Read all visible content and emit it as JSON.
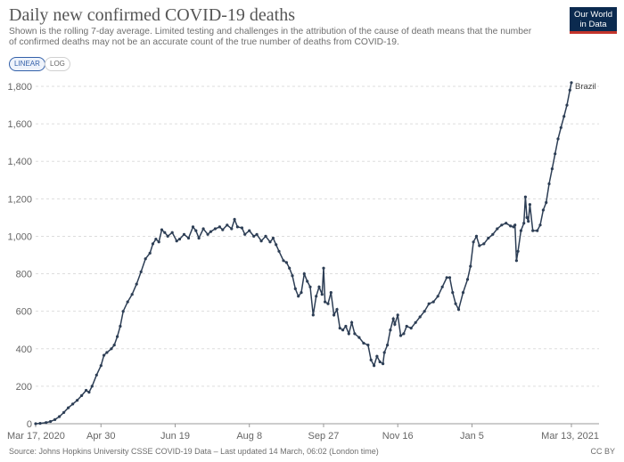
{
  "header": {
    "title": "Daily new confirmed COVID-19 deaths",
    "subtitle": "Shown is the rolling 7-day average. Limited testing and challenges in the attribution of the cause of death means that the number of confirmed deaths may not be an accurate count of the true number of deaths from COVID-19.",
    "logo_line1": "Our World",
    "logo_line2": "in Data"
  },
  "controls": {
    "linear_label": "LINEAR",
    "log_label": "LOG",
    "selected": "LINEAR"
  },
  "footer": {
    "source": "Source: Johns Hopkins University CSSE COVID-19 Data – Last updated 14 March, 06:02 (London time)",
    "license": "CC BY"
  },
  "colors": {
    "series": "#2d3e55",
    "grid": "#dddddd",
    "axis": "#999999"
  },
  "chart_data": {
    "type": "line",
    "title": "Daily new confirmed COVID-19 deaths",
    "xlabel": "",
    "ylabel": "",
    "x_start": "2020-03-17",
    "x_end": "2021-03-13",
    "x_ticks": [
      {
        "date": "2020-03-17",
        "label": "Mar 17, 2020"
      },
      {
        "date": "2020-04-30",
        "label": "Apr 30"
      },
      {
        "date": "2020-06-19",
        "label": "Jun 19"
      },
      {
        "date": "2020-08-08",
        "label": "Aug 8"
      },
      {
        "date": "2020-09-27",
        "label": "Sep 27"
      },
      {
        "date": "2020-11-16",
        "label": "Nov 16"
      },
      {
        "date": "2021-01-05",
        "label": "Jan 5"
      },
      {
        "date": "2021-03-13",
        "label": "Mar 13, 2021"
      }
    ],
    "y_ticks": [
      {
        "value": 0,
        "label": "0"
      },
      {
        "value": 200,
        "label": "200"
      },
      {
        "value": 400,
        "label": "400"
      },
      {
        "value": 600,
        "label": "600"
      },
      {
        "value": 800,
        "label": "800"
      },
      {
        "value": 1000,
        "label": "1,000"
      },
      {
        "value": 1200,
        "label": "1,200"
      },
      {
        "value": 1400,
        "label": "1,400"
      },
      {
        "value": 1600,
        "label": "1,600"
      },
      {
        "value": 1800,
        "label": "1,800"
      }
    ],
    "ylim": [
      0,
      1800
    ],
    "grid": "horizontal-dashed",
    "legend": "inline-end",
    "series": [
      {
        "name": "Brazil",
        "points": [
          [
            "2020-03-17",
            0
          ],
          [
            "2020-03-20",
            2
          ],
          [
            "2020-03-24",
            6
          ],
          [
            "2020-03-27",
            12
          ],
          [
            "2020-03-30",
            22
          ],
          [
            "2020-04-02",
            38
          ],
          [
            "2020-04-05",
            60
          ],
          [
            "2020-04-08",
            85
          ],
          [
            "2020-04-11",
            105
          ],
          [
            "2020-04-14",
            125
          ],
          [
            "2020-04-17",
            150
          ],
          [
            "2020-04-20",
            178
          ],
          [
            "2020-04-22",
            168
          ],
          [
            "2020-04-24",
            200
          ],
          [
            "2020-04-27",
            260
          ],
          [
            "2020-04-30",
            310
          ],
          [
            "2020-05-02",
            365
          ],
          [
            "2020-05-04",
            380
          ],
          [
            "2020-05-07",
            400
          ],
          [
            "2020-05-09",
            420
          ],
          [
            "2020-05-11",
            465
          ],
          [
            "2020-05-13",
            520
          ],
          [
            "2020-05-15",
            600
          ],
          [
            "2020-05-18",
            650
          ],
          [
            "2020-05-21",
            690
          ],
          [
            "2020-05-24",
            745
          ],
          [
            "2020-05-27",
            810
          ],
          [
            "2020-05-30",
            880
          ],
          [
            "2020-06-02",
            910
          ],
          [
            "2020-06-04",
            960
          ],
          [
            "2020-06-06",
            985
          ],
          [
            "2020-06-08",
            970
          ],
          [
            "2020-06-10",
            1035
          ],
          [
            "2020-06-12",
            1020
          ],
          [
            "2020-06-14",
            1000
          ],
          [
            "2020-06-17",
            1020
          ],
          [
            "2020-06-20",
            975
          ],
          [
            "2020-06-22",
            985
          ],
          [
            "2020-06-25",
            1010
          ],
          [
            "2020-06-28",
            990
          ],
          [
            "2020-07-01",
            1050
          ],
          [
            "2020-07-03",
            1030
          ],
          [
            "2020-07-05",
            990
          ],
          [
            "2020-07-08",
            1040
          ],
          [
            "2020-07-11",
            1010
          ],
          [
            "2020-07-13",
            1025
          ],
          [
            "2020-07-16",
            1040
          ],
          [
            "2020-07-19",
            1050
          ],
          [
            "2020-07-21",
            1035
          ],
          [
            "2020-07-24",
            1060
          ],
          [
            "2020-07-27",
            1040
          ],
          [
            "2020-07-29",
            1090
          ],
          [
            "2020-07-31",
            1050
          ],
          [
            "2020-08-03",
            1045
          ],
          [
            "2020-08-05",
            1010
          ],
          [
            "2020-08-08",
            1030
          ],
          [
            "2020-08-11",
            1000
          ],
          [
            "2020-08-13",
            1010
          ],
          [
            "2020-08-16",
            975
          ],
          [
            "2020-08-19",
            1000
          ],
          [
            "2020-08-22",
            970
          ],
          [
            "2020-08-24",
            990
          ],
          [
            "2020-08-26",
            955
          ],
          [
            "2020-08-28",
            920
          ],
          [
            "2020-08-31",
            870
          ],
          [
            "2020-09-02",
            860
          ],
          [
            "2020-09-04",
            830
          ],
          [
            "2020-09-06",
            790
          ],
          [
            "2020-09-08",
            720
          ],
          [
            "2020-09-10",
            680
          ],
          [
            "2020-09-12",
            700
          ],
          [
            "2020-09-14",
            800
          ],
          [
            "2020-09-16",
            760
          ],
          [
            "2020-09-18",
            730
          ],
          [
            "2020-09-20",
            580
          ],
          [
            "2020-09-22",
            680
          ],
          [
            "2020-09-24",
            730
          ],
          [
            "2020-09-26",
            690
          ],
          [
            "2020-09-27",
            830
          ],
          [
            "2020-09-28",
            650
          ],
          [
            "2020-09-30",
            640
          ],
          [
            "2020-10-02",
            700
          ],
          [
            "2020-10-04",
            580
          ],
          [
            "2020-10-06",
            610
          ],
          [
            "2020-10-08",
            510
          ],
          [
            "2020-10-10",
            500
          ],
          [
            "2020-10-12",
            520
          ],
          [
            "2020-10-14",
            480
          ],
          [
            "2020-10-16",
            540
          ],
          [
            "2020-10-18",
            480
          ],
          [
            "2020-10-21",
            460
          ],
          [
            "2020-10-24",
            430
          ],
          [
            "2020-10-27",
            420
          ],
          [
            "2020-10-29",
            340
          ],
          [
            "2020-10-31",
            310
          ],
          [
            "2020-11-02",
            360
          ],
          [
            "2020-11-04",
            330
          ],
          [
            "2020-11-06",
            320
          ],
          [
            "2020-11-07",
            380
          ],
          [
            "2020-11-09",
            420
          ],
          [
            "2020-11-11",
            500
          ],
          [
            "2020-11-13",
            560
          ],
          [
            "2020-11-14",
            530
          ],
          [
            "2020-11-16",
            580
          ],
          [
            "2020-11-18",
            470
          ],
          [
            "2020-11-20",
            480
          ],
          [
            "2020-11-22",
            520
          ],
          [
            "2020-11-25",
            510
          ],
          [
            "2020-11-28",
            540
          ],
          [
            "2020-12-01",
            570
          ],
          [
            "2020-12-04",
            600
          ],
          [
            "2020-12-07",
            640
          ],
          [
            "2020-12-10",
            650
          ],
          [
            "2020-12-13",
            680
          ],
          [
            "2020-12-16",
            730
          ],
          [
            "2020-12-19",
            780
          ],
          [
            "2020-12-21",
            780
          ],
          [
            "2020-12-23",
            700
          ],
          [
            "2020-12-25",
            640
          ],
          [
            "2020-12-27",
            610
          ],
          [
            "2020-12-30",
            700
          ],
          [
            "2021-01-02",
            770
          ],
          [
            "2021-01-04",
            840
          ],
          [
            "2021-01-06",
            970
          ],
          [
            "2021-01-08",
            1000
          ],
          [
            "2021-01-10",
            950
          ],
          [
            "2021-01-13",
            960
          ],
          [
            "2021-01-16",
            990
          ],
          [
            "2021-01-19",
            1010
          ],
          [
            "2021-01-22",
            1040
          ],
          [
            "2021-01-25",
            1060
          ],
          [
            "2021-01-28",
            1070
          ],
          [
            "2021-01-31",
            1055
          ],
          [
            "2021-02-02",
            1050
          ],
          [
            "2021-02-03",
            1060
          ],
          [
            "2021-02-04",
            870
          ],
          [
            "2021-02-05",
            920
          ],
          [
            "2021-02-07",
            1030
          ],
          [
            "2021-02-09",
            1070
          ],
          [
            "2021-02-10",
            1210
          ],
          [
            "2021-02-11",
            1100
          ],
          [
            "2021-02-12",
            1080
          ],
          [
            "2021-02-13",
            1170
          ],
          [
            "2021-02-15",
            1030
          ],
          [
            "2021-02-18",
            1030
          ],
          [
            "2021-02-20",
            1060
          ],
          [
            "2021-02-22",
            1140
          ],
          [
            "2021-02-24",
            1180
          ],
          [
            "2021-02-26",
            1280
          ],
          [
            "2021-02-28",
            1360
          ],
          [
            "2021-03-02",
            1440
          ],
          [
            "2021-03-04",
            1520
          ],
          [
            "2021-03-06",
            1580
          ],
          [
            "2021-03-08",
            1640
          ],
          [
            "2021-03-10",
            1700
          ],
          [
            "2021-03-12",
            1780
          ],
          [
            "2021-03-13",
            1820
          ]
        ]
      }
    ]
  }
}
